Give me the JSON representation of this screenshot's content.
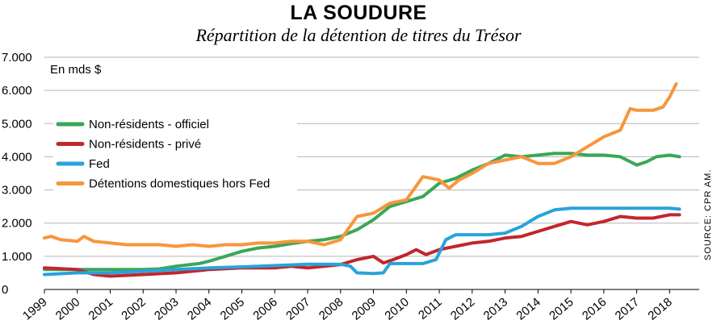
{
  "chart_data": {
    "type": "line",
    "title": "LA SOUDURE",
    "subtitle": "Répartition de la détention de titres du Trésor",
    "unit_label": "En mds $",
    "source": "SOURCE: CPR AM.",
    "ylim": [
      0,
      7000
    ],
    "y_ticks": [
      0,
      1000,
      2000,
      3000,
      4000,
      5000,
      6000,
      7000
    ],
    "y_tick_labels": [
      "0",
      "1.000",
      "2.000",
      "3.000",
      "4.000",
      "5.000",
      "6.000",
      "7.000"
    ],
    "xlim": [
      1999,
      2018.9
    ],
    "x_ticks": [
      1999,
      2000,
      2001,
      2002,
      2003,
      2004,
      2005,
      2006,
      2007,
      2008,
      2009,
      2010,
      2011,
      2012,
      2013,
      2014,
      2015,
      2016,
      2017,
      2018
    ],
    "x_tick_labels": [
      "1999",
      "2000",
      "2001",
      "2002",
      "2003",
      "2004",
      "2005",
      "2006",
      "2007",
      "2008",
      "2009",
      "2010",
      "2011",
      "2012",
      "2013",
      "2014",
      "2015",
      "2016",
      "2017",
      "2018"
    ],
    "grid": true,
    "legend_position": "left",
    "series": [
      {
        "name": "Non-résidents - officiel",
        "color": "#3aa757",
        "points": [
          [
            1999,
            600
          ],
          [
            2000,
            600
          ],
          [
            2001,
            600
          ],
          [
            2002,
            600
          ],
          [
            2002.5,
            620
          ],
          [
            2003,
            700
          ],
          [
            2003.7,
            780
          ],
          [
            2004,
            850
          ],
          [
            2004.5,
            1000
          ],
          [
            2005,
            1150
          ],
          [
            2005.5,
            1250
          ],
          [
            2006,
            1300
          ],
          [
            2006.5,
            1380
          ],
          [
            2007,
            1450
          ],
          [
            2007.5,
            1500
          ],
          [
            2008,
            1600
          ],
          [
            2008.5,
            1800
          ],
          [
            2009,
            2100
          ],
          [
            2009.5,
            2500
          ],
          [
            2010,
            2650
          ],
          [
            2010.5,
            2800
          ],
          [
            2011,
            3200
          ],
          [
            2011.5,
            3350
          ],
          [
            2012,
            3600
          ],
          [
            2012.5,
            3800
          ],
          [
            2013,
            4050
          ],
          [
            2013.5,
            4000
          ],
          [
            2014,
            4050
          ],
          [
            2014.5,
            4100
          ],
          [
            2015,
            4100
          ],
          [
            2015.5,
            4050
          ],
          [
            2016,
            4050
          ],
          [
            2016.5,
            4000
          ],
          [
            2017,
            3750
          ],
          [
            2017.3,
            3850
          ],
          [
            2017.6,
            4000
          ],
          [
            2018,
            4050
          ],
          [
            2018.3,
            4000
          ]
        ]
      },
      {
        "name": "Non-résidents - privé",
        "color": "#c0272d",
        "points": [
          [
            1999,
            650
          ],
          [
            2000,
            600
          ],
          [
            2000.5,
            450
          ],
          [
            2001,
            400
          ],
          [
            2002,
            450
          ],
          [
            2003,
            500
          ],
          [
            2004,
            600
          ],
          [
            2005,
            650
          ],
          [
            2006,
            650
          ],
          [
            2006.5,
            700
          ],
          [
            2007,
            650
          ],
          [
            2007.5,
            700
          ],
          [
            2008,
            750
          ],
          [
            2008.5,
            900
          ],
          [
            2009,
            1000
          ],
          [
            2009.3,
            800
          ],
          [
            2009.6,
            900
          ],
          [
            2010,
            1050
          ],
          [
            2010.3,
            1200
          ],
          [
            2010.6,
            1050
          ],
          [
            2011,
            1200
          ],
          [
            2011.5,
            1300
          ],
          [
            2012,
            1400
          ],
          [
            2012.5,
            1450
          ],
          [
            2013,
            1550
          ],
          [
            2013.5,
            1600
          ],
          [
            2014,
            1750
          ],
          [
            2014.5,
            1900
          ],
          [
            2015,
            2050
          ],
          [
            2015.5,
            1950
          ],
          [
            2016,
            2050
          ],
          [
            2016.5,
            2200
          ],
          [
            2017,
            2150
          ],
          [
            2017.5,
            2150
          ],
          [
            2018,
            2250
          ],
          [
            2018.3,
            2250
          ]
        ]
      },
      {
        "name": "Fed",
        "color": "#29a3db",
        "points": [
          [
            1999,
            450
          ],
          [
            2000,
            500
          ],
          [
            2001,
            500
          ],
          [
            2002,
            550
          ],
          [
            2003,
            600
          ],
          [
            2004,
            650
          ],
          [
            2005,
            680
          ],
          [
            2006,
            720
          ],
          [
            2007,
            760
          ],
          [
            2008,
            760
          ],
          [
            2008.3,
            700
          ],
          [
            2008.5,
            500
          ],
          [
            2009,
            480
          ],
          [
            2009.3,
            500
          ],
          [
            2009.5,
            780
          ],
          [
            2010,
            780
          ],
          [
            2010.5,
            780
          ],
          [
            2010.9,
            900
          ],
          [
            2011.2,
            1500
          ],
          [
            2011.5,
            1650
          ],
          [
            2012,
            1650
          ],
          [
            2012.5,
            1650
          ],
          [
            2013,
            1700
          ],
          [
            2013.5,
            1900
          ],
          [
            2014,
            2200
          ],
          [
            2014.5,
            2400
          ],
          [
            2015,
            2450
          ],
          [
            2016,
            2450
          ],
          [
            2017,
            2450
          ],
          [
            2018,
            2450
          ],
          [
            2018.3,
            2420
          ]
        ]
      },
      {
        "name": "Détentions domestiques hors Fed",
        "color": "#f7963c",
        "points": [
          [
            1999,
            1550
          ],
          [
            1999.2,
            1600
          ],
          [
            1999.5,
            1500
          ],
          [
            2000,
            1450
          ],
          [
            2000.2,
            1600
          ],
          [
            2000.5,
            1450
          ],
          [
            2001,
            1400
          ],
          [
            2001.5,
            1350
          ],
          [
            2002,
            1350
          ],
          [
            2002.5,
            1350
          ],
          [
            2003,
            1300
          ],
          [
            2003.5,
            1350
          ],
          [
            2004,
            1300
          ],
          [
            2004.5,
            1350
          ],
          [
            2005,
            1350
          ],
          [
            2005.5,
            1400
          ],
          [
            2006,
            1400
          ],
          [
            2006.5,
            1450
          ],
          [
            2007,
            1450
          ],
          [
            2007.5,
            1350
          ],
          [
            2008,
            1500
          ],
          [
            2008.5,
            2200
          ],
          [
            2009,
            2300
          ],
          [
            2009.5,
            2600
          ],
          [
            2010,
            2700
          ],
          [
            2010.5,
            3400
          ],
          [
            2011,
            3300
          ],
          [
            2011.3,
            3050
          ],
          [
            2011.6,
            3300
          ],
          [
            2012,
            3500
          ],
          [
            2012.5,
            3800
          ],
          [
            2013,
            3900
          ],
          [
            2013.5,
            4000
          ],
          [
            2014,
            3800
          ],
          [
            2014.5,
            3800
          ],
          [
            2015,
            4000
          ],
          [
            2015.5,
            4300
          ],
          [
            2016,
            4600
          ],
          [
            2016.5,
            4800
          ],
          [
            2016.8,
            5450
          ],
          [
            2017,
            5400
          ],
          [
            2017.5,
            5400
          ],
          [
            2017.8,
            5500
          ],
          [
            2018,
            5800
          ],
          [
            2018.2,
            6200
          ]
        ]
      }
    ]
  }
}
